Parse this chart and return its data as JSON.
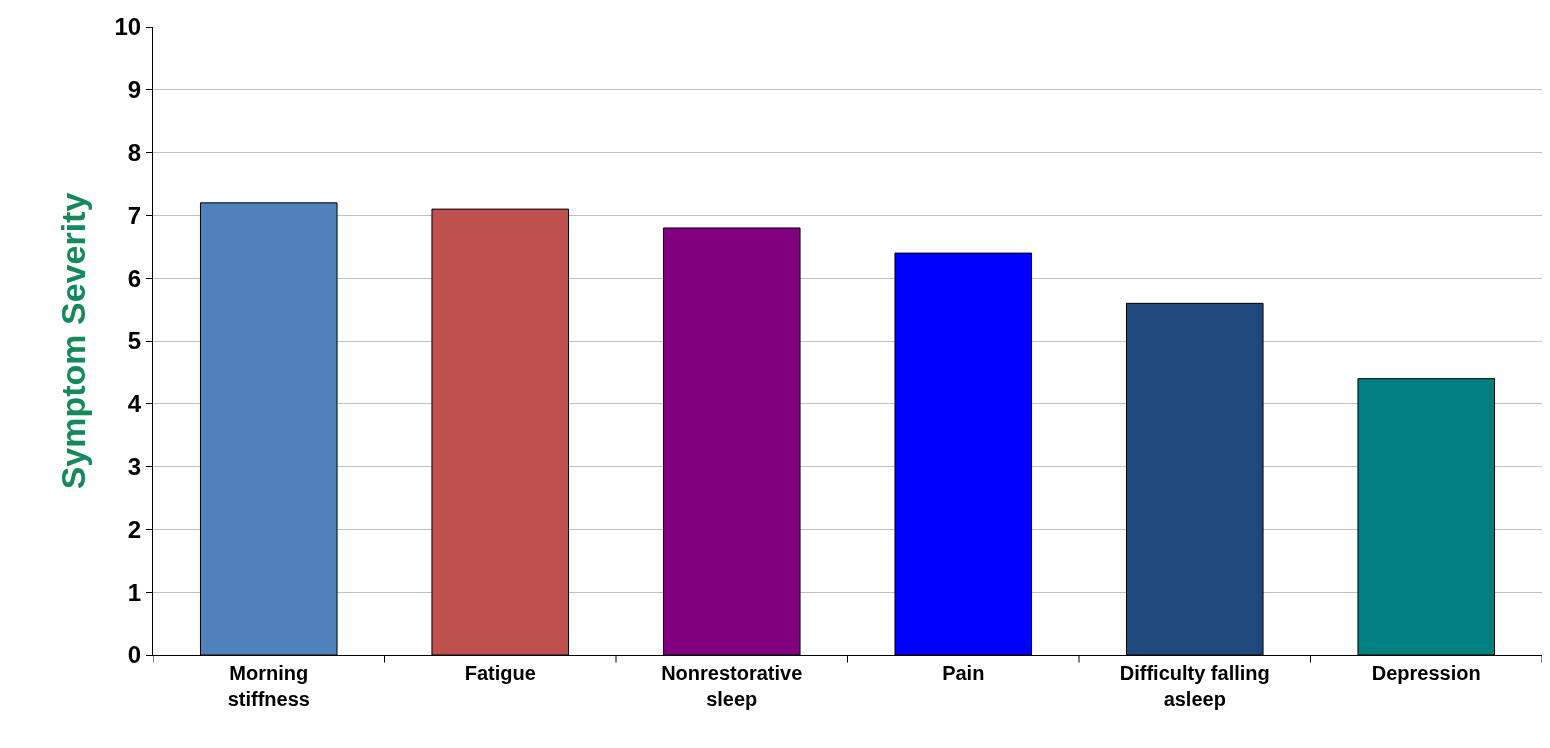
{
  "chart_data": {
    "type": "bar",
    "ylabel": "Symptom Severity",
    "categories": [
      "Morning stiffness",
      "Fatigue",
      "Nonrestorative sleep",
      "Pain",
      "Difficulty falling asleep",
      "Depression"
    ],
    "values": [
      7.2,
      7.1,
      6.8,
      6.4,
      5.6,
      4.4
    ],
    "colors": [
      "#4f81bd",
      "#c0504d",
      "#800080",
      "#0000ff",
      "#1f497d",
      "#008080"
    ],
    "ylim": [
      0,
      10
    ],
    "yticks": [
      0,
      1,
      2,
      3,
      4,
      5,
      6,
      7,
      8,
      9,
      10
    ],
    "grid": "y"
  }
}
